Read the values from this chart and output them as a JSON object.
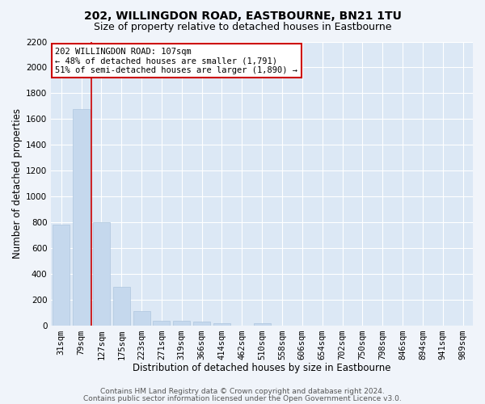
{
  "title": "202, WILLINGDON ROAD, EASTBOURNE, BN21 1TU",
  "subtitle": "Size of property relative to detached houses in Eastbourne",
  "xlabel": "Distribution of detached houses by size in Eastbourne",
  "ylabel": "Number of detached properties",
  "categories": [
    "31sqm",
    "79sqm",
    "127sqm",
    "175sqm",
    "223sqm",
    "271sqm",
    "319sqm",
    "366sqm",
    "414sqm",
    "462sqm",
    "510sqm",
    "558sqm",
    "606sqm",
    "654sqm",
    "702sqm",
    "750sqm",
    "798sqm",
    "846sqm",
    "894sqm",
    "941sqm",
    "989sqm"
  ],
  "values": [
    780,
    1680,
    800,
    300,
    115,
    38,
    38,
    28,
    18,
    0,
    18,
    0,
    0,
    0,
    0,
    0,
    0,
    0,
    0,
    0,
    0
  ],
  "bar_color": "#c5d8ed",
  "bar_edge_color": "#aec6de",
  "ylim": [
    0,
    2200
  ],
  "yticks": [
    0,
    200,
    400,
    600,
    800,
    1000,
    1200,
    1400,
    1600,
    1800,
    2000,
    2200
  ],
  "vline_color": "#cc0000",
  "annotation_box_text": "202 WILLINGDON ROAD: 107sqm\n← 48% of detached houses are smaller (1,791)\n51% of semi-detached houses are larger (1,890) →",
  "annotation_box_color": "#cc0000",
  "annotation_box_bg": "#ffffff",
  "footer_line1": "Contains HM Land Registry data © Crown copyright and database right 2024.",
  "footer_line2": "Contains public sector information licensed under the Open Government Licence v3.0.",
  "plot_bg_color": "#dce8f5",
  "fig_bg_color": "#f0f4fa",
  "grid_color": "#ffffff",
  "title_fontsize": 10,
  "subtitle_fontsize": 9,
  "axis_label_fontsize": 8.5,
  "tick_fontsize": 7.5,
  "annotation_fontsize": 7.5,
  "footer_fontsize": 6.5
}
